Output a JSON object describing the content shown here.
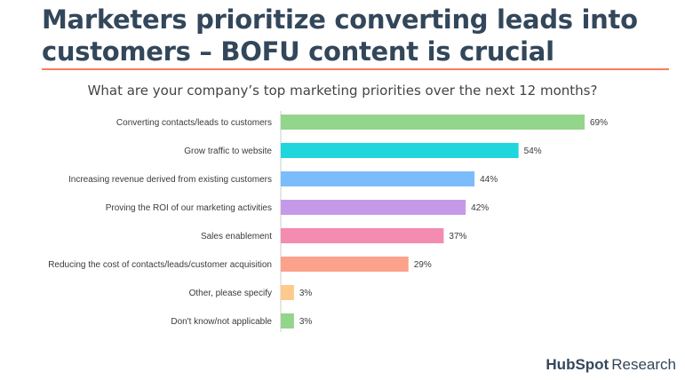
{
  "headline": "Marketers prioritize converting leads into customers – BOFU content is crucial",
  "brand": {
    "name": "HubSpot",
    "suffix": "Research"
  },
  "colors": {
    "accent_rule": "#ff7a59",
    "title": "#33475b"
  },
  "chart_data": {
    "type": "bar",
    "orientation": "horizontal",
    "title": "What are your company’s top marketing priorities over the next 12 months?",
    "categories": [
      "Converting contacts/leads to customers",
      "Grow traffic to website",
      "Increasing revenue derived from existing customers",
      "Proving the ROI of our marketing activities",
      "Sales enablement",
      "Reducing the cost of contacts/leads/customer acquisition",
      "Other, please specify",
      "Don't know/not applicable"
    ],
    "values": [
      69,
      54,
      44,
      42,
      37,
      29,
      3,
      3
    ],
    "value_labels": [
      "69%",
      "54%",
      "44%",
      "42%",
      "37%",
      "29%",
      "3%",
      "3%"
    ],
    "colors": [
      "#93d58a",
      "#1fd6dd",
      "#7dbcfb",
      "#c49ae8",
      "#f48bb0",
      "#fca18a",
      "#fdc98c",
      "#93d58a"
    ],
    "xlim": [
      0,
      100
    ],
    "grid": false,
    "legend": "none"
  }
}
